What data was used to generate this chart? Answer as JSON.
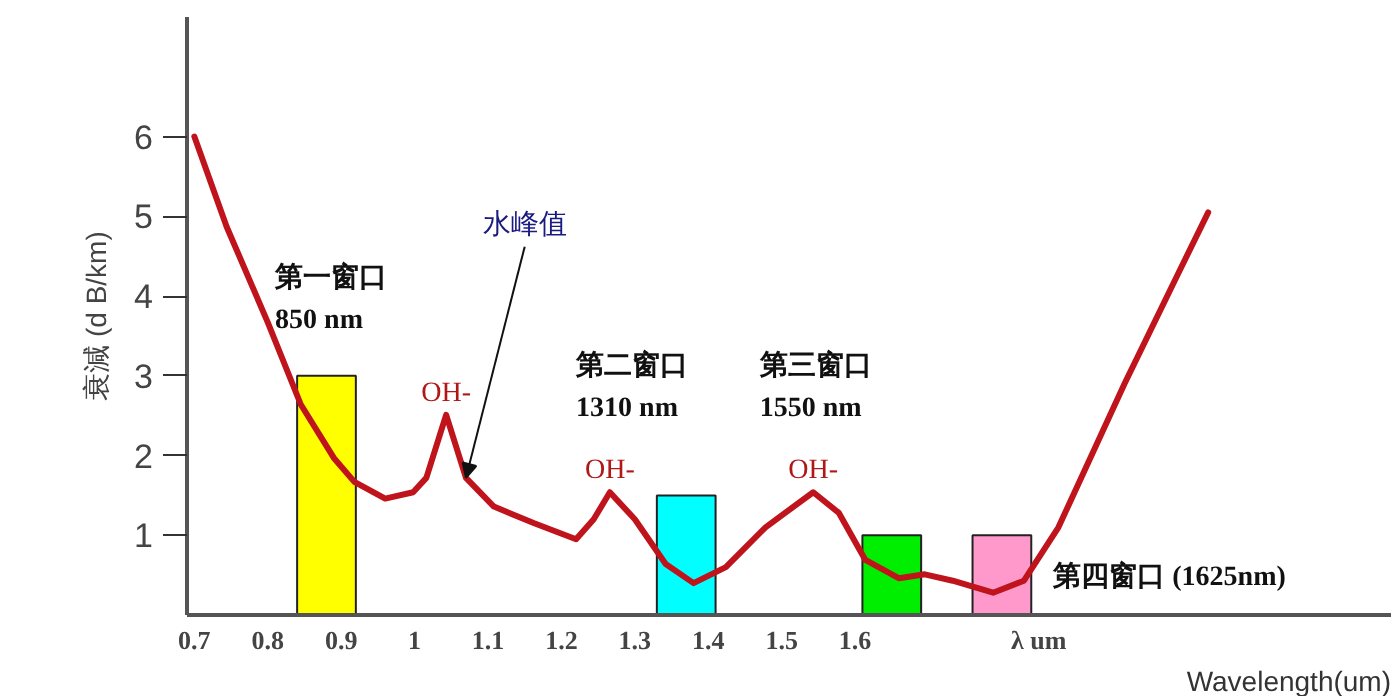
{
  "chart_data": {
    "type": "bar",
    "xlabel": "Wavelength(um)",
    "ylabel": "衰減 (d B/km)",
    "x": [
      0.88,
      1.37,
      1.65,
      1.8
    ],
    "values": [
      3.0,
      1.5,
      1.0,
      1.0
    ],
    "colors": [
      "#ffff00",
      "#00ffff",
      "#00ee00",
      "#ff99cc"
    ],
    "series": [
      {
        "type": "line",
        "color": "#c0141c",
        "x": [
          0.7,
          0.744,
          0.8,
          0.845,
          0.89,
          0.918,
          0.96,
          0.998,
          1.016,
          1.043,
          1.07,
          1.108,
          1.163,
          1.22,
          1.244,
          1.266,
          1.3,
          1.342,
          1.38,
          1.424,
          1.478,
          1.543,
          1.578,
          1.614,
          1.66,
          1.695,
          1.733,
          1.788,
          1.83,
          1.877,
          1.967,
          2.04,
          2.081
        ],
        "values": [
          6.0,
          4.87,
          3.67,
          2.64,
          1.97,
          1.67,
          1.46,
          1.54,
          1.72,
          2.51,
          1.72,
          1.36,
          1.15,
          0.95,
          1.2,
          1.54,
          1.2,
          0.64,
          0.4,
          0.6,
          1.1,
          1.54,
          1.28,
          0.69,
          0.46,
          0.51,
          0.43,
          0.28,
          0.43,
          1.1,
          2.9,
          4.28,
          5.05
        ]
      }
    ],
    "xlim": [
      0.69,
      2.33
    ],
    "ylim": [
      0,
      7.5
    ],
    "xticks": [
      0.7,
      0.8,
      0.9,
      1.0,
      1.1,
      1.2,
      1.3,
      1.4,
      1.5,
      1.6,
      {
        "value": 1.85,
        "label": "λ um"
      }
    ],
    "yticks": [
      1,
      2,
      3,
      4,
      5,
      6
    ],
    "grid": false,
    "annotations": [
      "第一窗口\n850 nm",
      "第二窗口\n1310 nm",
      "第三窗口\n1550 nm",
      "第四窗口 (1625nm)",
      {
        "text": "OH-",
        "x": 1.043,
        "y": 2.51
      },
      {
        "text": "OH-",
        "x": 1.266,
        "y": 1.54
      },
      {
        "text": "OH-",
        "x": 1.543,
        "y": 1.54
      },
      {
        "text": "水峰值",
        "x": 1.07,
        "y": 1.72
      }
    ]
  }
}
